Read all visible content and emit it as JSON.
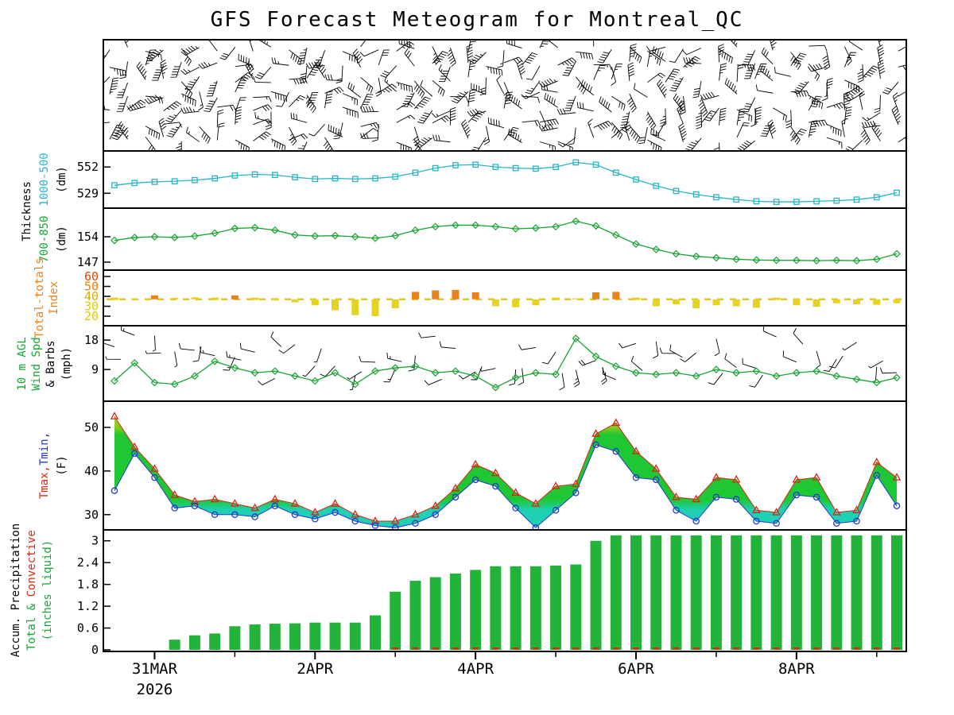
{
  "title": "GFS Forecast Meteogram for Montreal_QC",
  "axis_labels": {
    "thickness": "Thickness",
    "t500": "1000-500",
    "dm1": "(dm)",
    "t850": "700-850",
    "dm2": "(dm)",
    "totals1": "Total-totals",
    "totals2": "Index",
    "wind1": "10 m AGL",
    "wind2": "Wind Spd",
    "wind3": "& Barbs",
    "mph": "(mph)",
    "tmax": "Tmax,",
    "tmin": "Tmin,",
    "f": "(F)",
    "precip1": "Accum. Precipitation",
    "precip2": "Total & ",
    "precip3": "Convective",
    "inches": "(inches liquid)"
  },
  "x_axis": {
    "steps": 40,
    "step_hours": 6,
    "date_labels": [
      {
        "text": "31MAR",
        "i": 2
      },
      {
        "text": "2APR",
        "i": 10
      },
      {
        "text": "4APR",
        "i": 18
      },
      {
        "text": "6APR",
        "i": 26
      },
      {
        "text": "8APR",
        "i": 34
      }
    ],
    "year": "2026"
  },
  "chart_data": [
    {
      "id": "upper-air-wind-barbs",
      "type": "wind-barbs",
      "label": "Upper-level wind barbs (pressure levels vs time)",
      "rows": 7,
      "cols": 45,
      "seed": 20260330
    },
    {
      "id": "thickness-1000-500",
      "type": "line",
      "label": "1000-500 Thickness",
      "units": "dm",
      "marker": "square",
      "color": "#2ab4c8",
      "yticks": [
        552,
        529
      ],
      "ylim": [
        516,
        566
      ],
      "values": [
        536,
        538,
        539,
        539.5,
        540.5,
        542,
        544.5,
        545.5,
        545,
        543,
        541.5,
        542,
        541.5,
        542,
        543.5,
        547,
        551,
        553.5,
        554,
        552,
        551,
        550.5,
        552,
        556,
        554,
        547,
        541,
        535.5,
        531,
        528,
        525.5,
        523.5,
        522,
        521.5,
        521.5,
        522,
        522.5,
        523.5,
        525.5,
        529.5
      ]
    },
    {
      "id": "thickness-700-850",
      "type": "line",
      "label": "700-850 Thickness",
      "units": "dm",
      "marker": "diamond",
      "color": "#18a432",
      "yticks": [
        154,
        147
      ],
      "ylim": [
        144.8,
        161.9
      ],
      "values": [
        153,
        153.8,
        154,
        153.8,
        154.2,
        155,
        156.3,
        156.5,
        155.8,
        154.5,
        154.2,
        154.3,
        154,
        153.6,
        154.3,
        155.8,
        156.8,
        157.2,
        157.2,
        156.8,
        156.2,
        156.4,
        156.8,
        158.3,
        157,
        154.5,
        152,
        150.5,
        149.3,
        148.6,
        148.2,
        147.8,
        147.6,
        147.5,
        147.5,
        147.4,
        147.5,
        147.4,
        147.8,
        149.3
      ]
    },
    {
      "id": "total-totals-index",
      "type": "bar-baseline",
      "label": "Total-totals Index",
      "baseline": 37,
      "yticks": [
        60,
        50,
        40,
        30,
        20
      ],
      "ytick_colors": [
        "#e04400",
        "#e87d00",
        "#d9ae00",
        "#e0ca00",
        "#e0ca00"
      ],
      "ylim": [
        10.4,
        66.4
      ],
      "bar_color_low": "#e4d322",
      "bar_color_high": "#e8821e",
      "values": [
        37.5,
        38,
        41,
        38.5,
        39,
        37.5,
        41,
        37.5,
        37,
        34,
        31,
        26,
        21,
        20,
        28,
        44.5,
        46,
        46.5,
        44,
        30,
        29,
        31,
        37.5,
        38,
        44,
        44.5,
        37.5,
        30,
        32,
        28,
        31,
        30,
        28.5,
        37.5,
        31,
        29.5,
        33,
        32,
        31.5,
        33
      ]
    },
    {
      "id": "wind-10m",
      "type": "line-barbs",
      "label": "10 m AGL Wind Spd & Barbs",
      "units": "mph",
      "marker": "diamond",
      "color": "#18a432",
      "yticks": [
        18,
        9
      ],
      "ylim": [
        -0.7,
        22.4
      ],
      "barb_seed": 99,
      "values": [
        5.5,
        11,
        5,
        4.5,
        7,
        11.5,
        9.5,
        8,
        8.5,
        7,
        5.5,
        8,
        4.5,
        8.5,
        9.5,
        10,
        8,
        8.5,
        7,
        3.5,
        6.5,
        8,
        7.5,
        18.5,
        13,
        10,
        8,
        7.5,
        8,
        7,
        9,
        8,
        8.5,
        7,
        8,
        8.5,
        7,
        6,
        5,
        6.5
      ]
    },
    {
      "id": "temperature",
      "type": "band",
      "label": "Tmax, Tmin",
      "units": "F",
      "yticks": [
        50,
        40,
        30
      ],
      "ylim": [
        26.5,
        56
      ],
      "tmax_color": "#d42a10",
      "tmin_color": "#2238cc",
      "band_colors": [
        "#b0d820",
        "#1ec832",
        "#1fd0b4"
      ],
      "tmax": [
        52.5,
        45.5,
        40.5,
        34.5,
        33,
        33.5,
        32.5,
        31.5,
        33.5,
        32.5,
        30.5,
        32.5,
        30,
        28.5,
        28.5,
        30,
        32,
        36,
        41.5,
        39.5,
        35,
        32.5,
        36.5,
        37,
        48.5,
        51,
        44.5,
        40.5,
        34,
        33.5,
        38.5,
        38,
        31,
        30.5,
        38,
        38.5,
        30.5,
        31,
        42,
        38.5
      ],
      "tmin": [
        35.5,
        44,
        38.5,
        31.5,
        32,
        30,
        30,
        29.5,
        32,
        30,
        29,
        30.5,
        28.5,
        27.5,
        27,
        28,
        30,
        34,
        38,
        36.5,
        31.5,
        27,
        31,
        35,
        46,
        44.5,
        38.5,
        38,
        31,
        28.5,
        34,
        33.5,
        28.5,
        28,
        34.5,
        34,
        28,
        28.5,
        39,
        32
      ]
    },
    {
      "id": "precipitation",
      "type": "bars",
      "label": "Accum. Precipitation",
      "units": "inches liquid",
      "yticks": [
        3,
        2.4,
        1.8,
        1.2,
        0.6,
        0
      ],
      "ylim": [
        0,
        3.3
      ],
      "total_color": "#23b33a",
      "convective_color": "#d42a10",
      "total": [
        0,
        0,
        0,
        0.28,
        0.4,
        0.45,
        0.65,
        0.7,
        0.72,
        0.73,
        0.75,
        0.75,
        0.75,
        0.95,
        1.6,
        1.9,
        2.0,
        2.1,
        2.2,
        2.3,
        2.3,
        2.3,
        2.32,
        2.35,
        3.0,
        3.15,
        3.15,
        3.15,
        3.15,
        3.15,
        3.15,
        3.15,
        3.15,
        3.15,
        3.15,
        3.15,
        3.15,
        3.15,
        3.15,
        3.15
      ],
      "convective": [
        0,
        0,
        0,
        0,
        0,
        0,
        0,
        0,
        0,
        0,
        0,
        0,
        0,
        0,
        0.02,
        0.02,
        0.02,
        0.02,
        0.02,
        0.02,
        0.02,
        0.02,
        0.02,
        0.02,
        0.02,
        0.02,
        0.02,
        0.02,
        0.02,
        0.02,
        0.02,
        0.02,
        0.02,
        0.02,
        0.02,
        0.02,
        0.02,
        0.02,
        0.02,
        0.02
      ]
    }
  ]
}
